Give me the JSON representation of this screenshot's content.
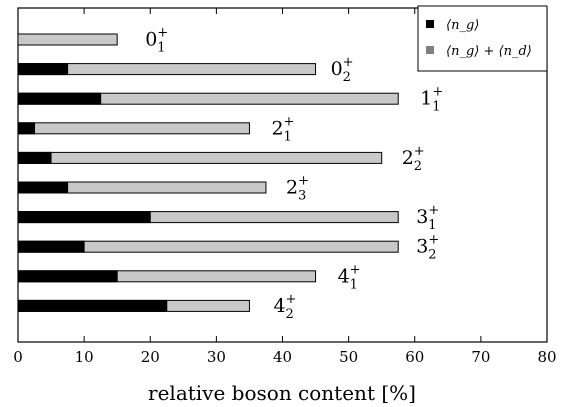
{
  "chart_data": {
    "type": "bar",
    "orientation": "horizontal",
    "stacked": true,
    "categories": [
      {
        "base": "0",
        "sub": "1",
        "sup": "+"
      },
      {
        "base": "0",
        "sub": "2",
        "sup": "+"
      },
      {
        "base": "1",
        "sub": "1",
        "sup": "+"
      },
      {
        "base": "2",
        "sub": "1",
        "sup": "+"
      },
      {
        "base": "2",
        "sub": "2",
        "sup": "+"
      },
      {
        "base": "2",
        "sub": "3",
        "sup": "+"
      },
      {
        "base": "3",
        "sub": "1",
        "sup": "+"
      },
      {
        "base": "3",
        "sub": "2",
        "sup": "+"
      },
      {
        "base": "4",
        "sub": "1",
        "sup": "+"
      },
      {
        "base": "4",
        "sub": "2",
        "sup": "+"
      }
    ],
    "series": [
      {
        "name": "⟨n_g⟩",
        "color": "#000000",
        "values": [
          0,
          7.5,
          12.5,
          2.5,
          5,
          7.5,
          20,
          10,
          15,
          22.5
        ]
      },
      {
        "name": "⟨n_g⟩ + ⟨n_d⟩",
        "color": "#c8c8c8",
        "values": [
          15,
          45,
          57.5,
          35,
          55,
          37.5,
          57.5,
          57.5,
          45,
          35
        ]
      }
    ],
    "xlabel": "relative boson content [%]",
    "xlim": [
      0,
      80
    ],
    "xticks": [
      "0",
      "10",
      "20",
      "30",
      "40",
      "50",
      "60",
      "70",
      "80"
    ],
    "legend": {
      "position": "top-right",
      "entries": [
        {
          "text": "⟨n_g⟩",
          "color": "#000000"
        },
        {
          "text": "⟨n_g⟩ + ⟨n_d⟩",
          "color": "#808080"
        }
      ]
    }
  }
}
